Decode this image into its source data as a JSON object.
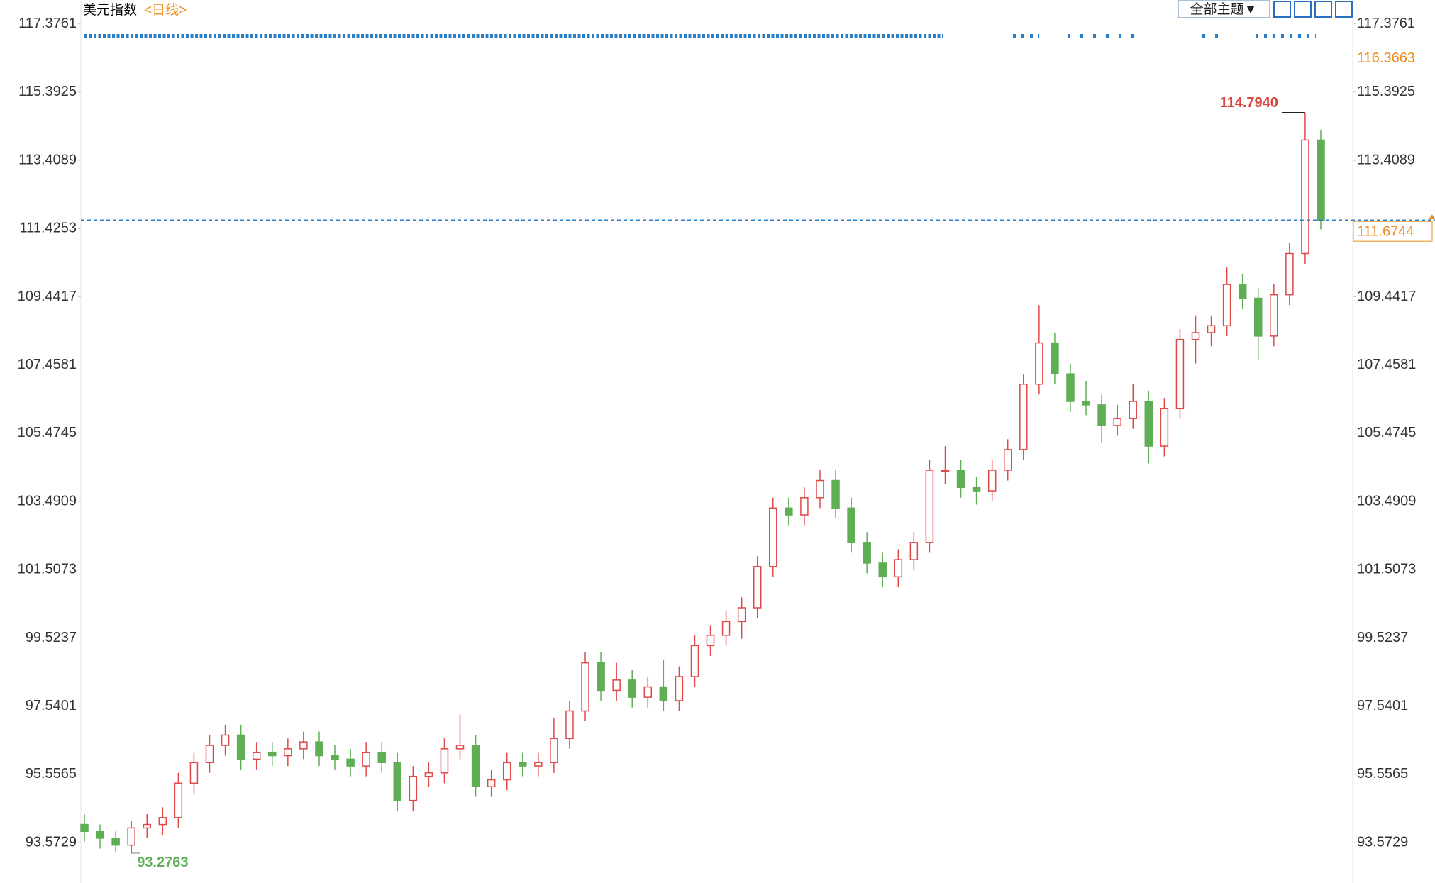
{
  "chart_data": {
    "type": "candlestick",
    "title": "美元指数",
    "period": "<日线>",
    "button": "全部主题▼",
    "ylim": [
      92.4,
      118.07
    ],
    "yticks": [
      93.5729,
      95.5565,
      97.5401,
      99.5237,
      101.5073,
      103.4909,
      105.4745,
      107.4581,
      109.4417,
      111.4253,
      113.4089,
      115.3925,
      117.3761
    ],
    "up_color": "#e04848",
    "down_color": "#5fae55",
    "ohlc": [
      [
        94.1,
        94.4,
        93.6,
        93.9
      ],
      [
        93.9,
        94.1,
        93.4,
        93.7
      ],
      [
        93.7,
        93.9,
        93.3,
        93.5
      ],
      [
        93.5,
        94.2,
        93.2763,
        94.0
      ],
      [
        94.0,
        94.4,
        93.7,
        94.1
      ],
      [
        94.1,
        94.6,
        93.8,
        94.3
      ],
      [
        94.3,
        95.6,
        94.0,
        95.3
      ],
      [
        95.3,
        96.2,
        95.0,
        95.9
      ],
      [
        95.9,
        96.7,
        95.6,
        96.4
      ],
      [
        96.4,
        97.0,
        96.1,
        96.7
      ],
      [
        96.7,
        97.0,
        95.7,
        96.0
      ],
      [
        96.0,
        96.5,
        95.7,
        96.2
      ],
      [
        96.2,
        96.5,
        95.8,
        96.1
      ],
      [
        96.1,
        96.6,
        95.8,
        96.3
      ],
      [
        96.3,
        96.8,
        96.0,
        96.5
      ],
      [
        96.5,
        96.8,
        95.8,
        96.1
      ],
      [
        96.1,
        96.4,
        95.7,
        96.0
      ],
      [
        96.0,
        96.3,
        95.5,
        95.8
      ],
      [
        95.8,
        96.5,
        95.5,
        96.2
      ],
      [
        96.2,
        96.5,
        95.6,
        95.9
      ],
      [
        95.9,
        96.2,
        94.5,
        94.8
      ],
      [
        94.8,
        95.8,
        94.5,
        95.5
      ],
      [
        95.5,
        95.9,
        95.2,
        95.6
      ],
      [
        95.6,
        96.6,
        95.3,
        96.3
      ],
      [
        96.3,
        97.3,
        96.0,
        96.4
      ],
      [
        96.4,
        96.7,
        94.9,
        95.2
      ],
      [
        95.2,
        95.7,
        94.9,
        95.4
      ],
      [
        95.4,
        96.2,
        95.1,
        95.9
      ],
      [
        95.9,
        96.2,
        95.5,
        95.8
      ],
      [
        95.8,
        96.2,
        95.5,
        95.9
      ],
      [
        95.9,
        97.2,
        95.6,
        96.6
      ],
      [
        96.6,
        97.7,
        96.3,
        97.4
      ],
      [
        97.4,
        99.1,
        97.1,
        98.8
      ],
      [
        98.8,
        99.1,
        97.7,
        98.0
      ],
      [
        98.0,
        98.8,
        97.7,
        98.3
      ],
      [
        98.3,
        98.6,
        97.5,
        97.8
      ],
      [
        97.8,
        98.4,
        97.5,
        98.1
      ],
      [
        98.1,
        98.9,
        97.4,
        97.7
      ],
      [
        97.7,
        98.7,
        97.4,
        98.4
      ],
      [
        98.4,
        99.6,
        98.1,
        99.3
      ],
      [
        99.3,
        99.9,
        99.0,
        99.6
      ],
      [
        99.6,
        100.3,
        99.3,
        100.0
      ],
      [
        100.0,
        100.7,
        99.5,
        100.4
      ],
      [
        100.4,
        101.9,
        100.1,
        101.6
      ],
      [
        101.6,
        103.6,
        101.3,
        103.3
      ],
      [
        103.3,
        103.6,
        102.8,
        103.1
      ],
      [
        103.1,
        103.9,
        102.8,
        103.6
      ],
      [
        103.6,
        104.4,
        103.3,
        104.1
      ],
      [
        104.1,
        104.4,
        103.0,
        103.3
      ],
      [
        103.3,
        103.6,
        102.0,
        102.3
      ],
      [
        102.3,
        102.6,
        101.4,
        101.7
      ],
      [
        101.7,
        102.0,
        101.0,
        101.3
      ],
      [
        101.3,
        102.1,
        101.0,
        101.8
      ],
      [
        101.8,
        102.6,
        101.5,
        102.3
      ],
      [
        102.3,
        104.7,
        102.0,
        104.4
      ],
      [
        104.4,
        105.1,
        104.0,
        104.4
      ],
      [
        104.4,
        104.7,
        103.6,
        103.9
      ],
      [
        103.9,
        104.2,
        103.4,
        103.8
      ],
      [
        103.8,
        104.7,
        103.5,
        104.4
      ],
      [
        104.4,
        105.3,
        104.1,
        105.0
      ],
      [
        105.0,
        107.2,
        104.7,
        106.9
      ],
      [
        106.9,
        109.2,
        106.6,
        108.1
      ],
      [
        108.1,
        108.4,
        106.9,
        107.2
      ],
      [
        107.2,
        107.5,
        106.1,
        106.4
      ],
      [
        106.4,
        107.0,
        106.0,
        106.3
      ],
      [
        106.3,
        106.6,
        105.2,
        105.7
      ],
      [
        105.7,
        106.3,
        105.4,
        105.9
      ],
      [
        105.9,
        106.9,
        105.6,
        106.4
      ],
      [
        106.4,
        106.7,
        104.6,
        105.1
      ],
      [
        105.1,
        106.5,
        104.8,
        106.2
      ],
      [
        106.2,
        108.5,
        105.9,
        108.2
      ],
      [
        108.2,
        108.9,
        107.5,
        108.4
      ],
      [
        108.4,
        108.9,
        108.0,
        108.6
      ],
      [
        108.6,
        110.3,
        108.3,
        109.8
      ],
      [
        109.8,
        110.1,
        109.1,
        109.4
      ],
      [
        109.4,
        109.7,
        107.6,
        108.3
      ],
      [
        108.3,
        109.8,
        108.0,
        109.5
      ],
      [
        109.5,
        111.0,
        109.2,
        110.7
      ],
      [
        110.7,
        114.794,
        110.4,
        114.0
      ],
      [
        114.0,
        114.3,
        111.4,
        111.6744
      ]
    ],
    "high_annotation": {
      "value": 114.794,
      "label": "114.7940"
    },
    "low_annotation": 93.2763,
    "marker_value": 116.3663,
    "last_price": 111.6744
  }
}
